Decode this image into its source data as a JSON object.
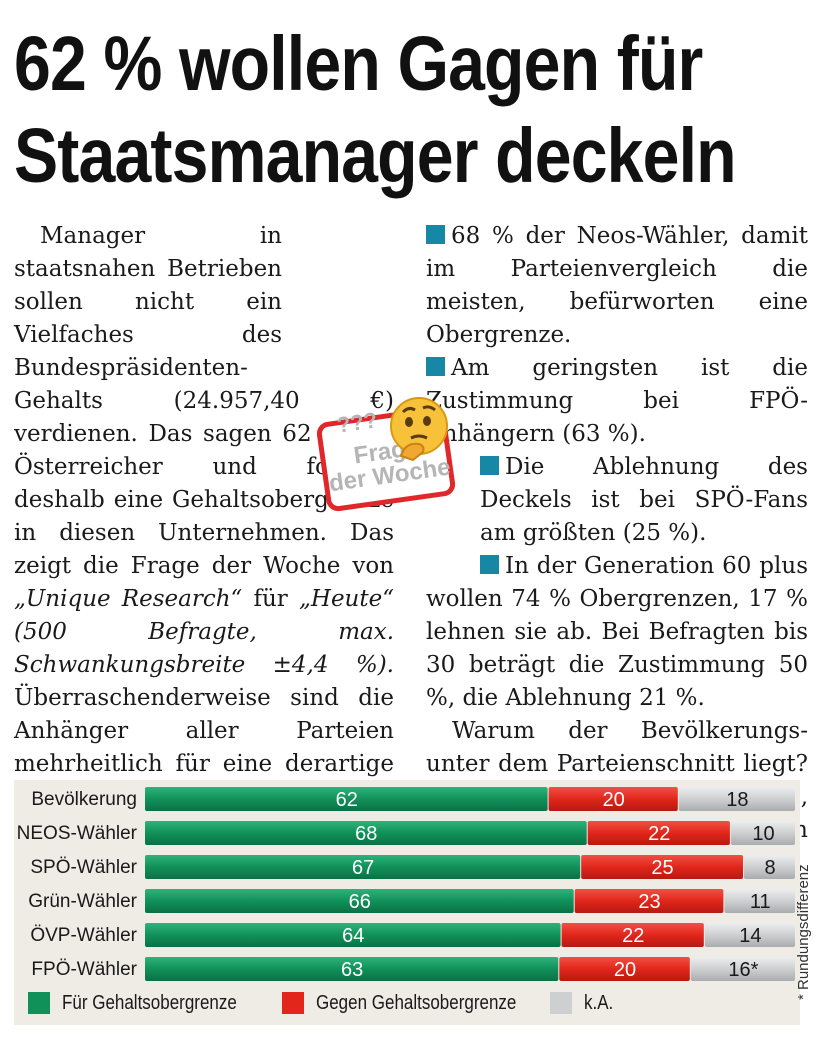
{
  "headline": {
    "line1": "62 % wollen Gagen für",
    "line2": "Staatsmanager deckeln"
  },
  "left_column": {
    "p1": "Manager in staatsnahen Betrieben sollen nicht ein Vielfaches des Bundespräsidenten-Gehalts (24.957,40 €) verdienen. Das sagen 62 % der Österreicher und fordern deshalb eine Gehaltsobergrenze in diesen Unternehmen. Das zeigt die Frage der Woche von ",
    "source": "„Unique Research“",
    "for_word": " für ",
    "outlet": "„Heute“",
    "method": " (500 Befragte, max. Schwankungsbreite ±4,4 %).",
    "p2": " Überraschenderweise sind die Anhänger aller Parteien mehrheitlich für eine derartige Regelung, es gibt kaum Unterschiede. Die Details:"
  },
  "right_column": {
    "bullet1": "68 % der Neos-Wähler, damit im Parteienvergleich die meisten, befürworten eine Obergrenze.",
    "bullet2": "Am geringsten ist die Zustimmung bei FPÖ-Anhängern (63 %).",
    "bullet3": "Die Ablehnung des Deckels ist bei SPÖ-Fans am größten (25 %).",
    "bullet4": "In der Generation 60 plus wollen 74 % Obergrenzen, 17 % lehnen sie ab. Bei Befragten bis 30 beträgt die Zustimmung 50 %, die Ablehnung 21 %.",
    "closing": "Warum der Bevölkerungs- unter dem Parteienschnitt liegt? Wegen der hohen Zahl (18 %), die sich nicht deklarieren wollten",
    "end_logo": "H"
  },
  "badge": {
    "question_marks": "???",
    "line1": "Frage",
    "line2": "der Woche"
  },
  "colors": {
    "accent_blue": "#1688a5",
    "brand_red": "#d6231e",
    "for_green": "#11915a",
    "against_red": "#e2261b",
    "no_answer_gray": "#cdcfd1"
  },
  "chart_data": {
    "type": "bar",
    "orientation": "horizontal-stacked",
    "unit": "%",
    "categories": [
      "Bevölkerung",
      "NEOS-Wähler",
      "SPÖ-Wähler",
      "Grün-Wähler",
      "ÖVP-Wähler",
      "FPÖ-Wähler"
    ],
    "series": [
      {
        "name": "Für Gehaltsobergrenze",
        "values": [
          62,
          68,
          67,
          66,
          64,
          63
        ]
      },
      {
        "name": "Gegen Gehaltsobergrenze",
        "values": [
          20,
          22,
          25,
          23,
          22,
          20
        ]
      },
      {
        "name": "k.A.",
        "values": [
          18,
          10,
          8,
          11,
          14,
          16
        ]
      }
    ],
    "value_labels": [
      [
        "62",
        "20",
        "18"
      ],
      [
        "68",
        "22",
        "10"
      ],
      [
        "67",
        "25",
        "8"
      ],
      [
        "66",
        "23",
        "11"
      ],
      [
        "64",
        "22",
        "14"
      ],
      [
        "63",
        "20",
        "16*"
      ]
    ],
    "legend": [
      "Für Gehaltsobergrenze",
      "Gegen Gehaltsobergrenze",
      "k.A."
    ],
    "footnote": "* Rundungsdifferenz"
  }
}
